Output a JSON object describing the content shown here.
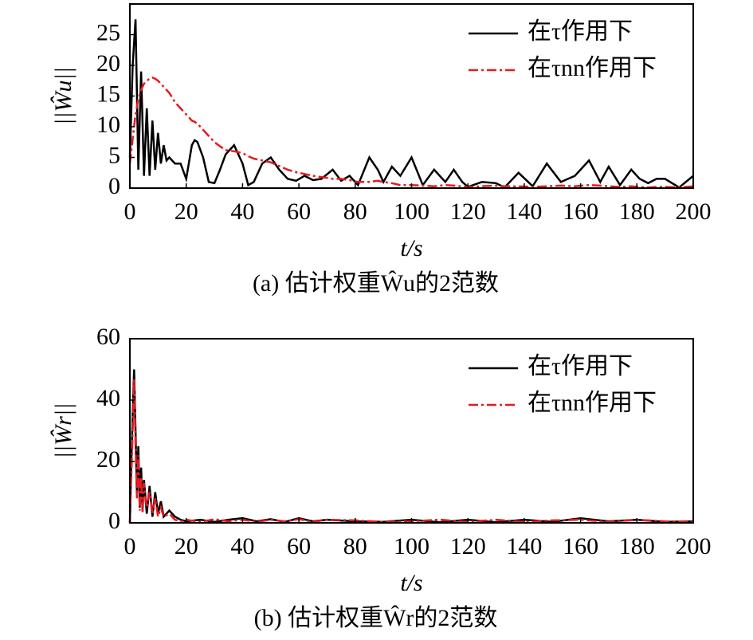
{
  "chart_data": [
    {
      "type": "line",
      "caption": "(a) 估计权重Ŵu的2范数",
      "xlabel": "t/s",
      "ylabel": "||Ŵu||",
      "x": [
        0,
        1,
        2,
        3,
        4,
        5,
        6,
        7,
        8,
        9,
        10,
        11,
        12,
        13,
        14,
        16,
        18,
        20,
        22,
        23,
        24,
        26,
        28,
        30,
        32,
        34,
        37,
        40,
        42,
        44,
        47,
        50,
        53,
        56,
        59,
        62,
        65,
        68,
        72,
        75,
        78,
        81,
        85,
        88,
        90,
        93,
        96,
        100,
        104,
        108,
        112,
        115,
        118,
        120,
        125,
        130,
        133,
        138,
        143,
        148,
        153,
        158,
        163,
        167,
        170,
        174,
        178,
        181,
        184,
        187,
        190,
        195,
        200
      ],
      "series": [
        {
          "name": "在τ作用下",
          "color": "#000000",
          "style": "solid",
          "values": [
            5,
            20,
            27.5,
            3,
            19,
            2,
            13,
            2,
            11,
            3,
            9,
            4,
            7,
            4.5,
            5,
            4,
            4,
            1.5,
            7,
            7.8,
            7.5,
            5,
            1,
            0.8,
            3,
            5.5,
            7,
            4,
            0.5,
            1,
            4,
            5,
            3,
            1.5,
            1.2,
            2,
            1.3,
            1.5,
            3,
            1.2,
            2,
            0.5,
            5,
            3,
            1,
            3.5,
            2,
            5,
            0.5,
            3,
            1,
            3,
            1,
            0.2,
            1,
            0.8,
            0.1,
            2.5,
            0.3,
            4,
            1,
            2,
            4.5,
            1,
            3.5,
            0.5,
            3,
            1.5,
            0.8,
            1.5,
            1.5,
            0.1,
            2
          ]
        },
        {
          "name": "在τnn作用下",
          "color": "#e8191e",
          "style": "dashdot",
          "values": [
            4,
            8,
            12,
            14.5,
            16,
            17,
            17.5,
            17.8,
            18,
            17.8,
            17.5,
            17,
            16.5,
            16,
            15.5,
            14,
            13,
            12,
            11,
            10.8,
            10.5,
            9.5,
            8.5,
            7.5,
            6.8,
            6.2,
            6,
            5.7,
            5.2,
            4.8,
            4.5,
            4.2,
            3.6,
            3,
            2.6,
            2.3,
            2,
            1.8,
            1.5,
            1.5,
            1.3,
            1,
            1,
            1.2,
            1,
            0.8,
            0.5,
            0.5,
            0.4,
            0.3,
            0.5,
            0.4,
            0.3,
            0.2,
            0.3,
            0.4,
            0.3,
            0.3,
            0.2,
            0.3,
            0.4,
            0.3,
            0.5,
            0.4,
            0.3,
            0.2,
            0.3,
            0.2,
            0.1,
            0.2,
            0.2,
            0.1,
            0.3
          ]
        }
      ],
      "xlim": [
        0,
        200
      ],
      "xticks": [
        0,
        20,
        40,
        60,
        80,
        100,
        120,
        140,
        160,
        180,
        200
      ],
      "ylim": [
        0,
        30
      ],
      "yticks": [
        0,
        5,
        10,
        15,
        20,
        25
      ],
      "legend": "upper right"
    },
    {
      "type": "line",
      "caption": "(b) 估计权重Ŵr的2范数",
      "xlabel": "t/s",
      "ylabel": "||Ŵr||",
      "x": [
        0,
        0.5,
        1,
        1.5,
        2,
        2.5,
        3,
        3.5,
        4,
        4.5,
        5,
        6,
        7,
        8,
        9,
        10,
        11,
        12,
        14,
        16,
        18,
        20,
        25,
        30,
        35,
        40,
        45,
        50,
        55,
        60,
        65,
        70,
        80,
        90,
        100,
        110,
        120,
        130,
        140,
        150,
        160,
        170,
        180,
        190,
        200
      ],
      "series": [
        {
          "name": "在τ作用下",
          "color": "#000000",
          "style": "solid",
          "values": [
            0,
            20,
            35,
            50,
            30,
            10,
            25,
            5,
            18,
            4,
            14,
            3,
            12,
            2,
            10,
            3,
            7,
            2,
            4,
            2,
            1,
            0.5,
            1,
            0.3,
            1,
            1.5,
            0.5,
            1.2,
            0.3,
            1.5,
            0.5,
            1,
            0.5,
            0.3,
            1,
            0.2,
            1,
            0.2,
            1,
            0.3,
            1.5,
            0.5,
            1,
            0.3,
            0.5
          ]
        },
        {
          "name": "在τnn作用下",
          "color": "#e8191e",
          "style": "dashdot",
          "values": [
            0,
            15,
            30,
            47,
            25,
            8,
            22,
            4,
            15,
            3,
            13,
            5,
            10,
            3,
            8,
            2,
            5,
            2,
            3,
            1,
            0.5,
            1,
            0.3,
            1.2,
            0.5,
            1,
            0.3,
            1,
            0.5,
            1.2,
            0.3,
            1,
            0.8,
            0.3,
            0.5,
            1,
            0.3,
            1,
            0.3,
            0.8,
            1,
            0.3,
            1,
            0.5,
            0.3
          ]
        }
      ],
      "xlim": [
        0,
        200
      ],
      "xticks": [
        0,
        20,
        40,
        60,
        80,
        100,
        120,
        140,
        160,
        180,
        200
      ],
      "ylim": [
        0,
        60
      ],
      "yticks": [
        0,
        20,
        40,
        60
      ],
      "legend": "upper right"
    }
  ]
}
